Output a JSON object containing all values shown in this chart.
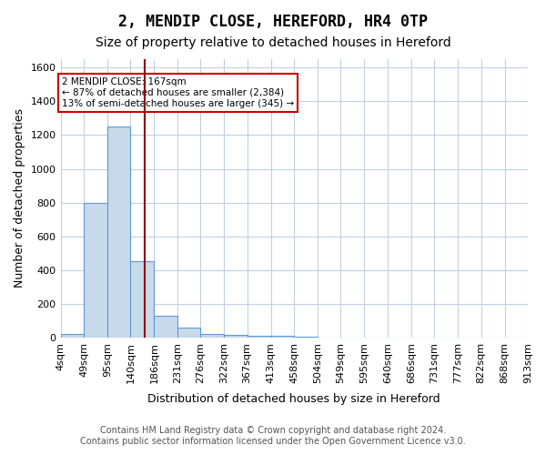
{
  "title": "2, MENDIP CLOSE, HEREFORD, HR4 0TP",
  "subtitle": "Size of property relative to detached houses in Hereford",
  "xlabel": "Distribution of detached houses by size in Hereford",
  "ylabel": "Number of detached properties",
  "footer_line1": "Contains HM Land Registry data © Crown copyright and database right 2024.",
  "footer_line2": "Contains public sector information licensed under the Open Government Licence v3.0.",
  "bin_edges": [
    4,
    49,
    95,
    140,
    186,
    231,
    276,
    322,
    367,
    413,
    458,
    504,
    549,
    595,
    640,
    686,
    731,
    777,
    822,
    868,
    913
  ],
  "bin_labels": [
    "4sqm",
    "49sqm",
    "95sqm",
    "140sqm",
    "186sqm",
    "231sqm",
    "276sqm",
    "322sqm",
    "367sqm",
    "413sqm",
    "458sqm",
    "504sqm",
    "549sqm",
    "595sqm",
    "640sqm",
    "686sqm",
    "731sqm",
    "777sqm",
    "822sqm",
    "868sqm",
    "913sqm"
  ],
  "bar_heights": [
    20,
    800,
    1250,
    450,
    130,
    60,
    20,
    15,
    10,
    10,
    5,
    0,
    0,
    0,
    0,
    0,
    0,
    0,
    0,
    0
  ],
  "bar_color": "#c8d9ea",
  "bar_edge_color": "#5b9bd5",
  "property_size": 167,
  "vline_color": "#8b0000",
  "annotation_text": "2 MENDIP CLOSE: 167sqm\n← 87% of detached houses are smaller (2,384)\n13% of semi-detached houses are larger (345) →",
  "annotation_box_color": "#ffffff",
  "annotation_border_color": "#cc0000",
  "ylim": [
    0,
    1650
  ],
  "yticks": [
    0,
    200,
    400,
    600,
    800,
    1000,
    1200,
    1400,
    1600
  ],
  "background_color": "#ffffff",
  "grid_color": "#c0d0e0",
  "title_fontsize": 12,
  "subtitle_fontsize": 10,
  "axis_label_fontsize": 9,
  "tick_fontsize": 8,
  "footer_fontsize": 7
}
